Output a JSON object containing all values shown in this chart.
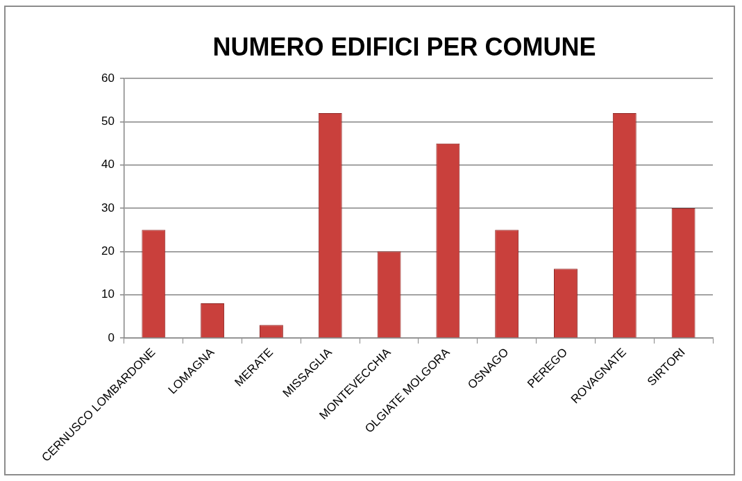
{
  "chart_data": {
    "type": "bar",
    "title": "NUMERO EDIFICI PER COMUNE",
    "categories": [
      "CERNUSCO LOMBARDONE",
      "LOMAGNA",
      "MERATE",
      "MISSAGLIA",
      "MONTEVECCHIA",
      "OLGIATE MOLGORA",
      "OSNAGO",
      "PEREGO",
      "ROVAGNATE",
      "SIRTORI"
    ],
    "values": [
      25,
      8,
      3,
      52,
      20,
      45,
      25,
      16,
      52,
      30
    ],
    "color": "#c9403c",
    "ylim": [
      0,
      60
    ],
    "yticks": [
      0,
      10,
      20,
      30,
      40,
      50,
      60
    ],
    "grid": "y",
    "legend": false
  }
}
